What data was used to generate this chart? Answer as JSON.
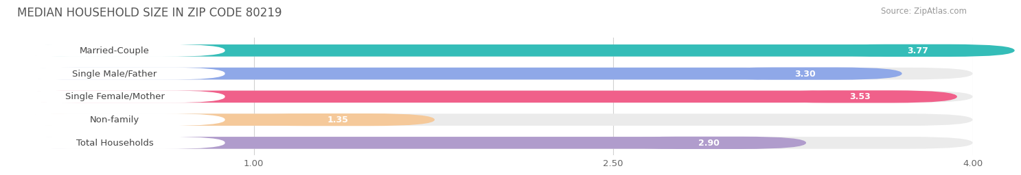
{
  "title": "MEDIAN HOUSEHOLD SIZE IN ZIP CODE 80219",
  "source": "Source: ZipAtlas.com",
  "categories": [
    "Married-Couple",
    "Single Male/Father",
    "Single Female/Mother",
    "Non-family",
    "Total Households"
  ],
  "values": [
    3.77,
    3.3,
    3.53,
    1.35,
    2.9
  ],
  "bar_colors": [
    "#34bdb8",
    "#8fa8e8",
    "#f0608a",
    "#f5c99a",
    "#b09ccc"
  ],
  "xlim": [
    0,
    4.0
  ],
  "xticks": [
    1.0,
    2.5,
    4.0
  ],
  "xtick_labels": [
    "1.00",
    "2.50",
    "4.00"
  ],
  "background_color": "#ffffff",
  "bar_background_color": "#ebebeb",
  "title_fontsize": 12,
  "label_fontsize": 9.5,
  "value_fontsize": 9,
  "source_fontsize": 8.5
}
